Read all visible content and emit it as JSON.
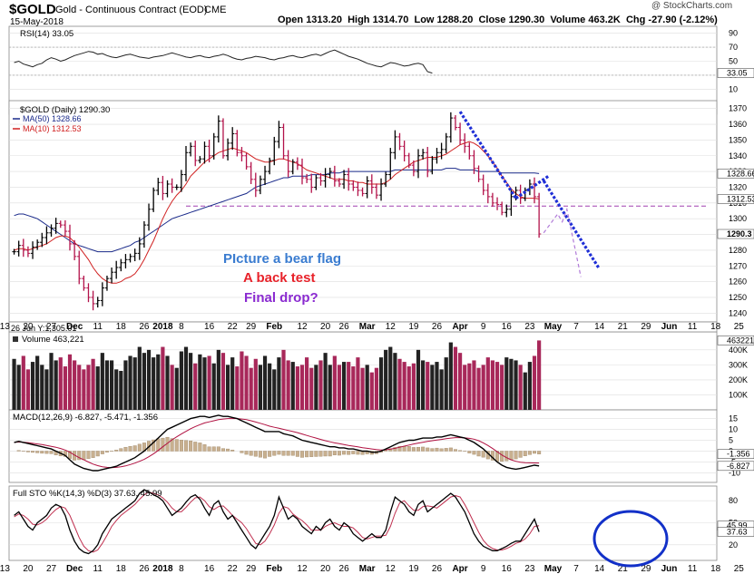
{
  "header": {
    "symbol": "$GOLD",
    "name": "Gold - Continuous Contract (EOD)",
    "exchange": "CME",
    "date": "15-May-2018",
    "watermark": "@ StockCharts.com",
    "open_label": "Open",
    "open": "1313.20",
    "high_label": "High",
    "high": "1314.70",
    "low_label": "Low",
    "low": "1288.20",
    "close_label": "Close",
    "close": "1290.30",
    "volume_label": "Volume",
    "volume": "463.2K",
    "chg_label": "Chg",
    "chg": "-27.90 (-2.12%)"
  },
  "annotations": {
    "line1": "PIcture a bear flag",
    "line2": "A back test",
    "line3": "Final drop?"
  },
  "colors": {
    "up": "#000000",
    "down": "#b3124a",
    "ma50": "#1a2a8a",
    "ma10": "#d02020",
    "flag": "#1f2fd6",
    "support": "#a040b0",
    "projection": "#b07ad8",
    "vol_up": "#222222",
    "vol_down": "#a8285a",
    "macd_hist": "#c8b090",
    "circle": "#1230c8",
    "ann1": "#3a7cd0",
    "ann2": "#e8222a",
    "ann3": "#8a2ad0"
  },
  "chart_data": [
    {
      "panel": "rsi",
      "type": "line",
      "legend": "RSI(14) 33.05",
      "y_ticks": [
        "90",
        "70",
        "50",
        "30",
        "10"
      ],
      "ylim": [
        0,
        100
      ],
      "value_label": "33.05",
      "values": [
        48,
        50,
        46,
        44,
        42,
        45,
        47,
        52,
        55,
        53,
        50,
        52,
        55,
        58,
        60,
        62,
        64,
        63,
        60,
        61,
        58,
        56,
        55,
        57,
        59,
        60,
        58,
        56,
        55,
        54,
        56,
        57,
        58,
        60,
        62,
        60,
        58,
        56,
        55,
        57,
        58,
        56,
        55,
        57,
        58,
        60,
        58,
        55,
        53,
        52,
        54,
        55,
        57,
        56,
        55,
        53,
        52,
        54,
        55,
        57,
        58,
        56,
        55,
        57,
        59,
        60,
        58,
        61,
        64,
        66,
        63,
        60,
        57,
        55,
        53,
        50,
        47,
        45,
        43,
        42,
        45,
        48,
        47,
        45,
        43,
        44,
        46,
        47,
        45,
        35,
        33.05
      ]
    },
    {
      "panel": "price",
      "type": "ohlc",
      "legend": [
        "$GOLD (Daily) 1290.30",
        "MA(50) 1328.66",
        "MA(10) 1312.53"
      ],
      "y_ticks": [
        "1370",
        "1360",
        "1350",
        "1340",
        "1330",
        "1320",
        "1310",
        "1300",
        "1290",
        "1280",
        "1270",
        "1260",
        "1250",
        "1240"
      ],
      "ylim": [
        1235,
        1375
      ],
      "value_labels": [
        "1328.66",
        "1312.53",
        "1290.3"
      ],
      "closes": [
        1279,
        1283,
        1280,
        1278,
        1282,
        1285,
        1288,
        1291,
        1294,
        1297,
        1296,
        1292,
        1284,
        1276,
        1262,
        1256,
        1250,
        1246,
        1248,
        1256,
        1262,
        1266,
        1269,
        1272,
        1274,
        1276,
        1278,
        1284,
        1296,
        1306,
        1318,
        1323,
        1316,
        1322,
        1320,
        1320,
        1328,
        1342,
        1346,
        1337,
        1338,
        1346,
        1340,
        1352,
        1362,
        1340,
        1348,
        1354,
        1342,
        1340,
        1333,
        1325,
        1318,
        1325,
        1330,
        1337,
        1349,
        1358,
        1340,
        1330,
        1336,
        1334,
        1326,
        1325,
        1320,
        1326,
        1324,
        1328,
        1330,
        1324,
        1322,
        1328,
        1322,
        1320,
        1318,
        1316,
        1324,
        1320,
        1315,
        1322,
        1328,
        1342,
        1352,
        1346,
        1340,
        1334,
        1330,
        1340,
        1342,
        1330,
        1338,
        1342,
        1344,
        1352,
        1364,
        1358,
        1350,
        1346,
        1340,
        1332,
        1325,
        1318,
        1314,
        1310,
        1309,
        1304,
        1306,
        1314,
        1318,
        1313,
        1318,
        1322,
        1314,
        1290.3
      ],
      "ma10": [
        1280,
        1281,
        1281,
        1280,
        1281,
        1282,
        1283,
        1284,
        1286,
        1288,
        1289,
        1289,
        1288,
        1285,
        1282,
        1278,
        1274,
        1269,
        1265,
        1262,
        1260,
        1259,
        1259,
        1260,
        1262,
        1263,
        1265,
        1269,
        1274,
        1280,
        1286,
        1293,
        1300,
        1306,
        1311,
        1315,
        1318,
        1322,
        1327,
        1330,
        1333,
        1336,
        1338,
        1340,
        1342,
        1343,
        1344,
        1345,
        1344,
        1343,
        1342,
        1340,
        1338,
        1337,
        1336,
        1336,
        1337,
        1338,
        1338,
        1337,
        1336,
        1335,
        1333,
        1331,
        1330,
        1329,
        1328,
        1327,
        1326,
        1325,
        1325,
        1325,
        1324,
        1324,
        1323,
        1323,
        1322,
        1322,
        1322,
        1322,
        1323,
        1325,
        1328,
        1330,
        1332,
        1334,
        1336,
        1337,
        1338,
        1339,
        1339,
        1339,
        1340,
        1341,
        1343,
        1345,
        1347,
        1348,
        1349,
        1348,
        1346,
        1343,
        1340,
        1336,
        1332,
        1327,
        1323,
        1319,
        1316,
        1314,
        1313,
        1313,
        1313,
        1312.53
      ],
      "ma50": [
        1302,
        1303,
        1303,
        1302,
        1301,
        1300,
        1298,
        1296,
        1294,
        1292,
        1290,
        1288,
        1286,
        1284,
        1283,
        1282,
        1281,
        1280,
        1279,
        1279,
        1279,
        1279,
        1280,
        1281,
        1282,
        1283,
        1285,
        1286,
        1288,
        1290,
        1292,
        1294,
        1296,
        1298,
        1300,
        1301,
        1302,
        1303,
        1304,
        1305,
        1306,
        1307,
        1308,
        1309,
        1310,
        1311,
        1312,
        1313,
        1314,
        1315,
        1316,
        1318,
        1320,
        1321,
        1322,
        1323,
        1324,
        1325,
        1326,
        1326,
        1327,
        1327,
        1327,
        1327,
        1328,
        1328,
        1328,
        1328,
        1329,
        1329,
        1329,
        1330,
        1330,
        1330,
        1330,
        1330,
        1330,
        1330,
        1330,
        1330,
        1330,
        1330,
        1331,
        1331,
        1331,
        1331,
        1331,
        1331,
        1331,
        1331,
        1331,
        1331,
        1331,
        1332,
        1332,
        1332,
        1331,
        1331,
        1331,
        1331,
        1330,
        1330,
        1330,
        1330,
        1330,
        1329,
        1329,
        1329,
        1329,
        1329,
        1329,
        1329,
        1329,
        1328.66
      ],
      "support_level": 1308,
      "flag_lines": [
        {
          "from": [
            96,
            1368
          ],
          "to": [
            108,
            1313
          ]
        },
        {
          "from": [
            108,
            1313
          ],
          "to": [
            115,
            1327
          ]
        },
        {
          "from": [
            114,
            1324
          ],
          "to": [
            126,
            1268
          ]
        }
      ],
      "projection": [
        [
          114,
          1291
        ],
        [
          117,
          1303
        ],
        [
          118,
          1298
        ],
        [
          119,
          1306
        ],
        [
          122,
          1263
        ]
      ],
      "x_labels": [
        "13",
        "20",
        "27",
        "Dec",
        "11",
        "18",
        "26",
        "2018",
        "8",
        "16",
        "22",
        "29",
        "Feb",
        "12",
        "20",
        "26",
        "Mar",
        "12",
        "19",
        "26",
        "Apr",
        "9",
        "16",
        "23",
        "May",
        "7",
        "14",
        "21",
        "29",
        "Jun",
        "11",
        "18",
        "25"
      ],
      "x_label_positions": [
        -2,
        3,
        8,
        13,
        18,
        23,
        28,
        32,
        36,
        42,
        47,
        51,
        56,
        62,
        67,
        71,
        76,
        81,
        86,
        91,
        96,
        101,
        106,
        111,
        116,
        121,
        126,
        131,
        136,
        141,
        146,
        151,
        156
      ],
      "annotation": "26 Jun Y:1,305.01"
    },
    {
      "panel": "volume",
      "type": "bar",
      "legend": "Volume 463,221",
      "y_ticks": [
        "400K",
        "300K",
        "200K",
        "100K"
      ],
      "ylim": [
        0,
        520
      ],
      "value_label": "463221",
      "values": [
        340,
        300,
        360,
        270,
        320,
        360,
        300,
        270,
        380,
        330,
        350,
        290,
        370,
        330,
        300,
        270,
        300,
        340,
        290,
        380,
        330,
        330,
        270,
        260,
        330,
        360,
        350,
        420,
        380,
        400,
        350,
        370,
        420,
        360,
        300,
        280,
        390,
        420,
        380,
        310,
        370,
        350,
        360,
        310,
        400,
        380,
        300,
        350,
        290,
        390,
        360,
        280,
        340,
        300,
        360,
        310,
        270,
        350,
        400,
        330,
        320,
        290,
        300,
        350,
        280,
        300,
        330,
        380,
        300,
        360,
        300,
        320,
        320,
        290,
        350,
        280,
        300,
        250,
        280,
        350,
        400,
        420,
        380,
        340,
        320,
        290,
        310,
        400,
        330,
        320,
        300,
        320,
        270,
        350,
        450,
        420,
        380,
        300,
        310,
        330,
        280,
        300,
        350,
        330,
        320,
        300,
        350,
        340,
        330,
        300,
        250,
        320,
        360,
        463
      ]
    },
    {
      "panel": "macd",
      "type": "line",
      "legend": [
        "MACD(12,26,9) -6.827, -5.471, -1.356"
      ],
      "y_ticks": [
        "15",
        "10",
        "5",
        "0",
        "-5",
        "-10"
      ],
      "ylim": [
        -14,
        19
      ],
      "value_labels": [
        "-1.356",
        "-6.827"
      ],
      "macd": [
        4,
        4.5,
        4,
        3.5,
        3,
        2.5,
        2,
        1.5,
        1,
        0,
        -1,
        -2,
        -4,
        -6,
        -7,
        -8,
        -8.5,
        -9,
        -9,
        -8.5,
        -8,
        -7.5,
        -7,
        -6,
        -5,
        -4,
        -3,
        -1.5,
        0,
        2,
        4,
        6,
        8,
        10,
        11,
        12,
        13,
        14,
        15,
        15.5,
        16,
        16,
        15.5,
        16,
        16.5,
        16,
        16,
        15.5,
        15,
        14,
        13,
        12,
        11,
        10,
        9,
        9,
        9,
        9,
        8,
        7.5,
        7,
        6,
        5,
        4.5,
        4,
        3.5,
        3,
        2.5,
        2,
        2,
        1.5,
        1.5,
        1,
        1,
        0.5,
        0,
        0,
        -0.5,
        -0.5,
        0,
        1,
        2,
        3,
        4,
        4.5,
        5,
        5,
        5.5,
        6,
        6,
        6,
        6.5,
        6.5,
        7,
        7.5,
        7,
        6.5,
        6,
        5,
        4,
        2.5,
        1,
        -1,
        -3,
        -5,
        -6.5,
        -7.5,
        -8,
        -8.3,
        -8,
        -7.5,
        -7,
        -6.5,
        -6.827
      ],
      "signal": [
        4,
        4.2,
        4.1,
        3.9,
        3.6,
        3.3,
        3,
        2.6,
        2.2,
        1.8,
        1.2,
        0.5,
        -0.5,
        -1.8,
        -3,
        -4,
        -5,
        -6,
        -6.7,
        -7.2,
        -7.5,
        -7.6,
        -7.5,
        -7.2,
        -6.8,
        -6.2,
        -5.5,
        -4.7,
        -3.8,
        -2.6,
        -1.2,
        0.3,
        2,
        3.6,
        5.2,
        6.6,
        7.9,
        9.1,
        10.3,
        11.3,
        12.2,
        13,
        13.5,
        14,
        14.5,
        14.8,
        15,
        15,
        15,
        14.8,
        14.5,
        14,
        13.4,
        12.8,
        12.2,
        11.5,
        11,
        10.5,
        10,
        9.5,
        9,
        8.5,
        7.9,
        7.2,
        6.6,
        6,
        5.4,
        4.8,
        4.3,
        3.8,
        3.4,
        3,
        2.6,
        2.3,
        2,
        1.6,
        1.3,
        1,
        0.7,
        0.5,
        0.6,
        0.9,
        1.3,
        1.8,
        2.3,
        2.8,
        3.3,
        3.7,
        4.1,
        4.5,
        4.8,
        5.1,
        5.4,
        5.7,
        6,
        6.2,
        6.2,
        6.1,
        5.9,
        5.5,
        4.8,
        3.8,
        2.6,
        1.2,
        -0.3,
        -1.8,
        -3,
        -4,
        -4.7,
        -5.1,
        -5.3,
        -5.4,
        -5.45,
        -5.471
      ]
    },
    {
      "panel": "stochastic",
      "type": "line",
      "legend": [
        "Full STO %K(14,3) %D(3) 37.63, 45.99"
      ],
      "y_ticks": [
        "80",
        "50",
        "20"
      ],
      "ylim": [
        0,
        100
      ],
      "value_labels": [
        "45.99",
        "37.63"
      ],
      "k": [
        60,
        65,
        55,
        45,
        40,
        50,
        55,
        60,
        70,
        75,
        72,
        60,
        40,
        25,
        15,
        10,
        8,
        12,
        20,
        35,
        45,
        55,
        60,
        65,
        70,
        75,
        80,
        90,
        95,
        92,
        88,
        85,
        80,
        70,
        60,
        65,
        70,
        78,
        85,
        88,
        82,
        70,
        60,
        75,
        80,
        65,
        55,
        60,
        50,
        40,
        30,
        20,
        15,
        25,
        35,
        45,
        60,
        85,
        70,
        55,
        60,
        55,
        45,
        40,
        35,
        45,
        40,
        50,
        55,
        45,
        40,
        50,
        45,
        35,
        30,
        25,
        30,
        35,
        30,
        30,
        40,
        65,
        85,
        80,
        75,
        65,
        60,
        75,
        80,
        65,
        70,
        75,
        80,
        85,
        90,
        85,
        75,
        65,
        50,
        35,
        25,
        18,
        15,
        12,
        12,
        15,
        18,
        22,
        25,
        25,
        35,
        45,
        55,
        37.63
      ],
      "d": [
        58,
        62,
        60,
        55,
        48,
        47,
        50,
        55,
        62,
        68,
        72,
        70,
        60,
        45,
        30,
        18,
        12,
        10,
        13,
        22,
        33,
        45,
        53,
        60,
        65,
        70,
        75,
        82,
        88,
        92,
        90,
        88,
        84,
        78,
        70,
        65,
        65,
        71,
        78,
        84,
        85,
        80,
        72,
        68,
        72,
        73,
        67,
        60,
        55,
        50,
        42,
        32,
        22,
        20,
        25,
        35,
        47,
        63,
        72,
        70,
        62,
        57,
        53,
        47,
        40,
        40,
        40,
        45,
        48,
        50,
        47,
        45,
        45,
        43,
        37,
        30,
        28,
        30,
        32,
        32,
        33,
        45,
        63,
        77,
        80,
        73,
        67,
        67,
        72,
        73,
        72,
        70,
        75,
        80,
        85,
        87,
        85,
        75,
        63,
        50,
        37,
        26,
        19,
        15,
        13,
        13,
        15,
        18,
        22,
        24,
        28,
        35,
        45,
        45.99
      ]
    }
  ]
}
